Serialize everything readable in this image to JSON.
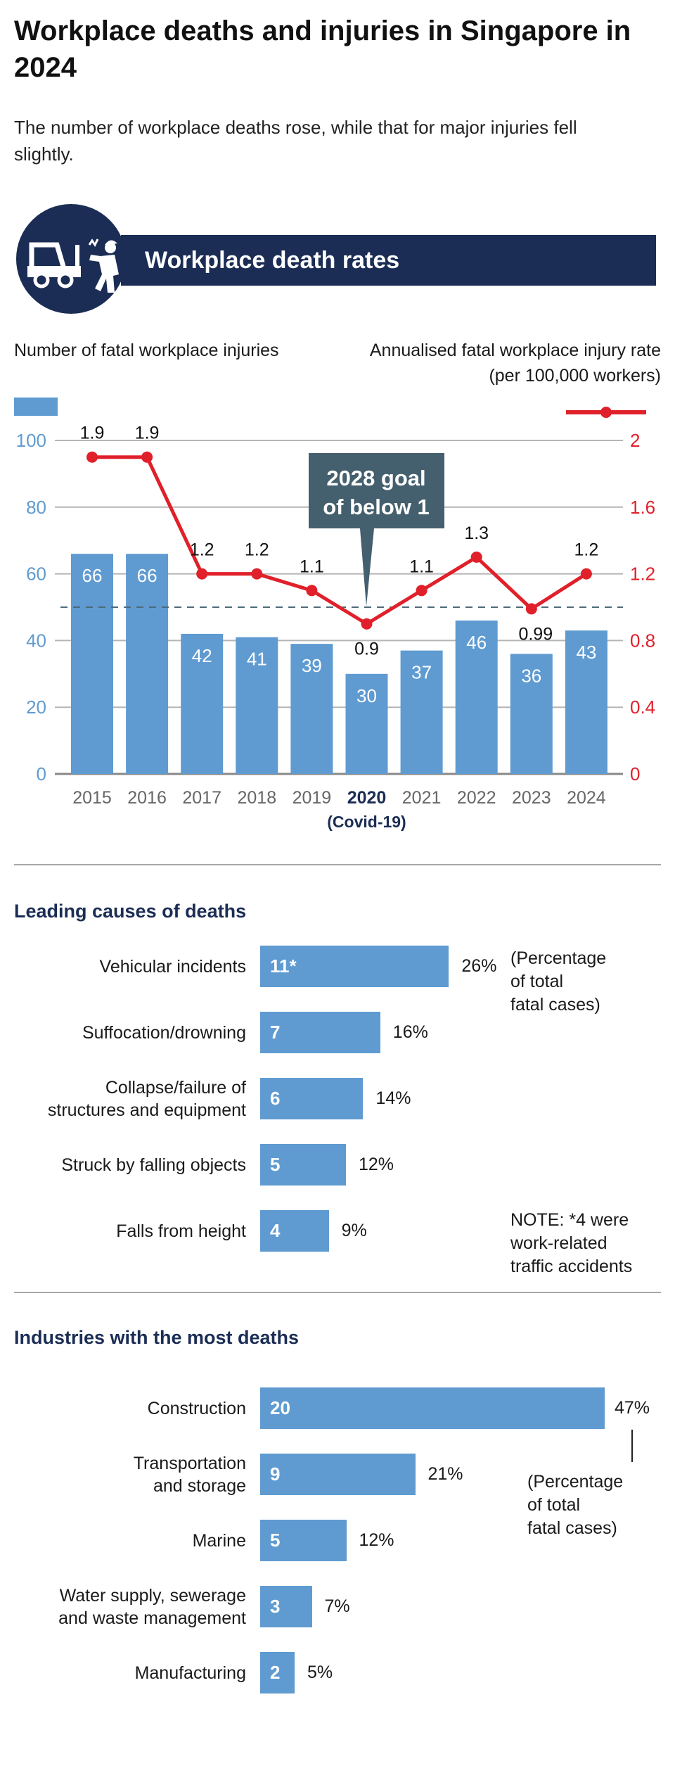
{
  "header": {
    "title": "Workplace deaths and injuries in Singapore in 2024",
    "subtitle": "The number of workplace deaths rose, while that for major injuries fell slightly."
  },
  "section1": {
    "title": "Workplace death rates",
    "icon": "forklift-worker-accident-icon"
  },
  "colors": {
    "navy": "#1b2d55",
    "bar": "#5f9bd1",
    "line": "#e0202a",
    "callout": "#445f6e",
    "left_axis": "#5f9bd1",
    "right_axis": "#e0202a"
  },
  "chart_data": [
    {
      "type": "bar+line",
      "left_label": "Number of fatal workplace injuries",
      "right_label_line1": "Annualised fatal workplace injury rate",
      "right_label_line2": "(per 100,000 workers)",
      "categories": [
        "2015",
        "2016",
        "2017",
        "2018",
        "2019",
        "2020",
        "2021",
        "2022",
        "2023",
        "2024"
      ],
      "highlight_category": "2020",
      "highlight_note": "(Covid-19)",
      "bars": {
        "values": [
          66,
          66,
          42,
          41,
          39,
          30,
          37,
          46,
          36,
          43
        ],
        "ylim": [
          0,
          100
        ],
        "ticks": [
          "0",
          "20",
          "40",
          "60",
          "80",
          "100"
        ]
      },
      "line": {
        "values": [
          1.9,
          1.9,
          1.2,
          1.2,
          1.1,
          0.9,
          1.1,
          1.3,
          0.99,
          1.2
        ],
        "labels": [
          "1.9",
          "1.9",
          "1.2",
          "1.2",
          "1.1",
          "0.9",
          "1.1",
          "1.3",
          "0.99",
          "1.2"
        ],
        "ylim": [
          0,
          2
        ],
        "ticks": [
          "0",
          "0.4",
          "0.8",
          "1.2",
          "1.6",
          "2"
        ]
      },
      "reference_line": {
        "value": 1,
        "style": "dashed",
        "annotation_line1": "2028 goal",
        "annotation_line2": "of below 1"
      },
      "grid": true
    },
    {
      "type": "bar",
      "orientation": "horizontal",
      "title": "Leading causes of deaths",
      "categories": [
        "Vehicular incidents",
        "Suffocation/drowning",
        "Collapse/failure of structures and equipment",
        "Struck by falling objects",
        "Falls from height"
      ],
      "category_lines": [
        [
          "Vehicular incidents"
        ],
        [
          "Suffocation/drowning"
        ],
        [
          "Collapse/failure of",
          "structures and equipment"
        ],
        [
          "Struck by falling objects"
        ],
        [
          "Falls from height"
        ]
      ],
      "values": [
        11,
        7,
        6,
        5,
        4
      ],
      "value_labels": [
        "11*",
        "7",
        "6",
        "5",
        "4"
      ],
      "percent_labels": [
        "26%",
        "16%",
        "14%",
        "12%",
        "9%"
      ],
      "pct_note": [
        "(Percentage",
        "of total",
        "fatal cases)"
      ],
      "footnote": [
        "NOTE: *4 were work-related",
        "traffic accidents"
      ]
    },
    {
      "type": "bar",
      "orientation": "horizontal",
      "title": "Industries with the most deaths",
      "categories": [
        "Construction",
        "Transportation and storage",
        "Marine",
        "Water supply, sewerage and waste management",
        "Manufacturing"
      ],
      "category_lines": [
        [
          "Construction"
        ],
        [
          "Transportation",
          "and storage"
        ],
        [
          "Marine"
        ],
        [
          "Water supply, sewerage",
          "and waste management"
        ],
        [
          "Manufacturing"
        ]
      ],
      "values": [
        20,
        9,
        5,
        3,
        2
      ],
      "value_labels": [
        "20",
        "9",
        "5",
        "3",
        "2"
      ],
      "percent_labels": [
        "47%",
        "21%",
        "12%",
        "7%",
        "5%"
      ],
      "pct_note": [
        "(Percentage",
        "of total",
        "fatal cases)"
      ]
    }
  ]
}
